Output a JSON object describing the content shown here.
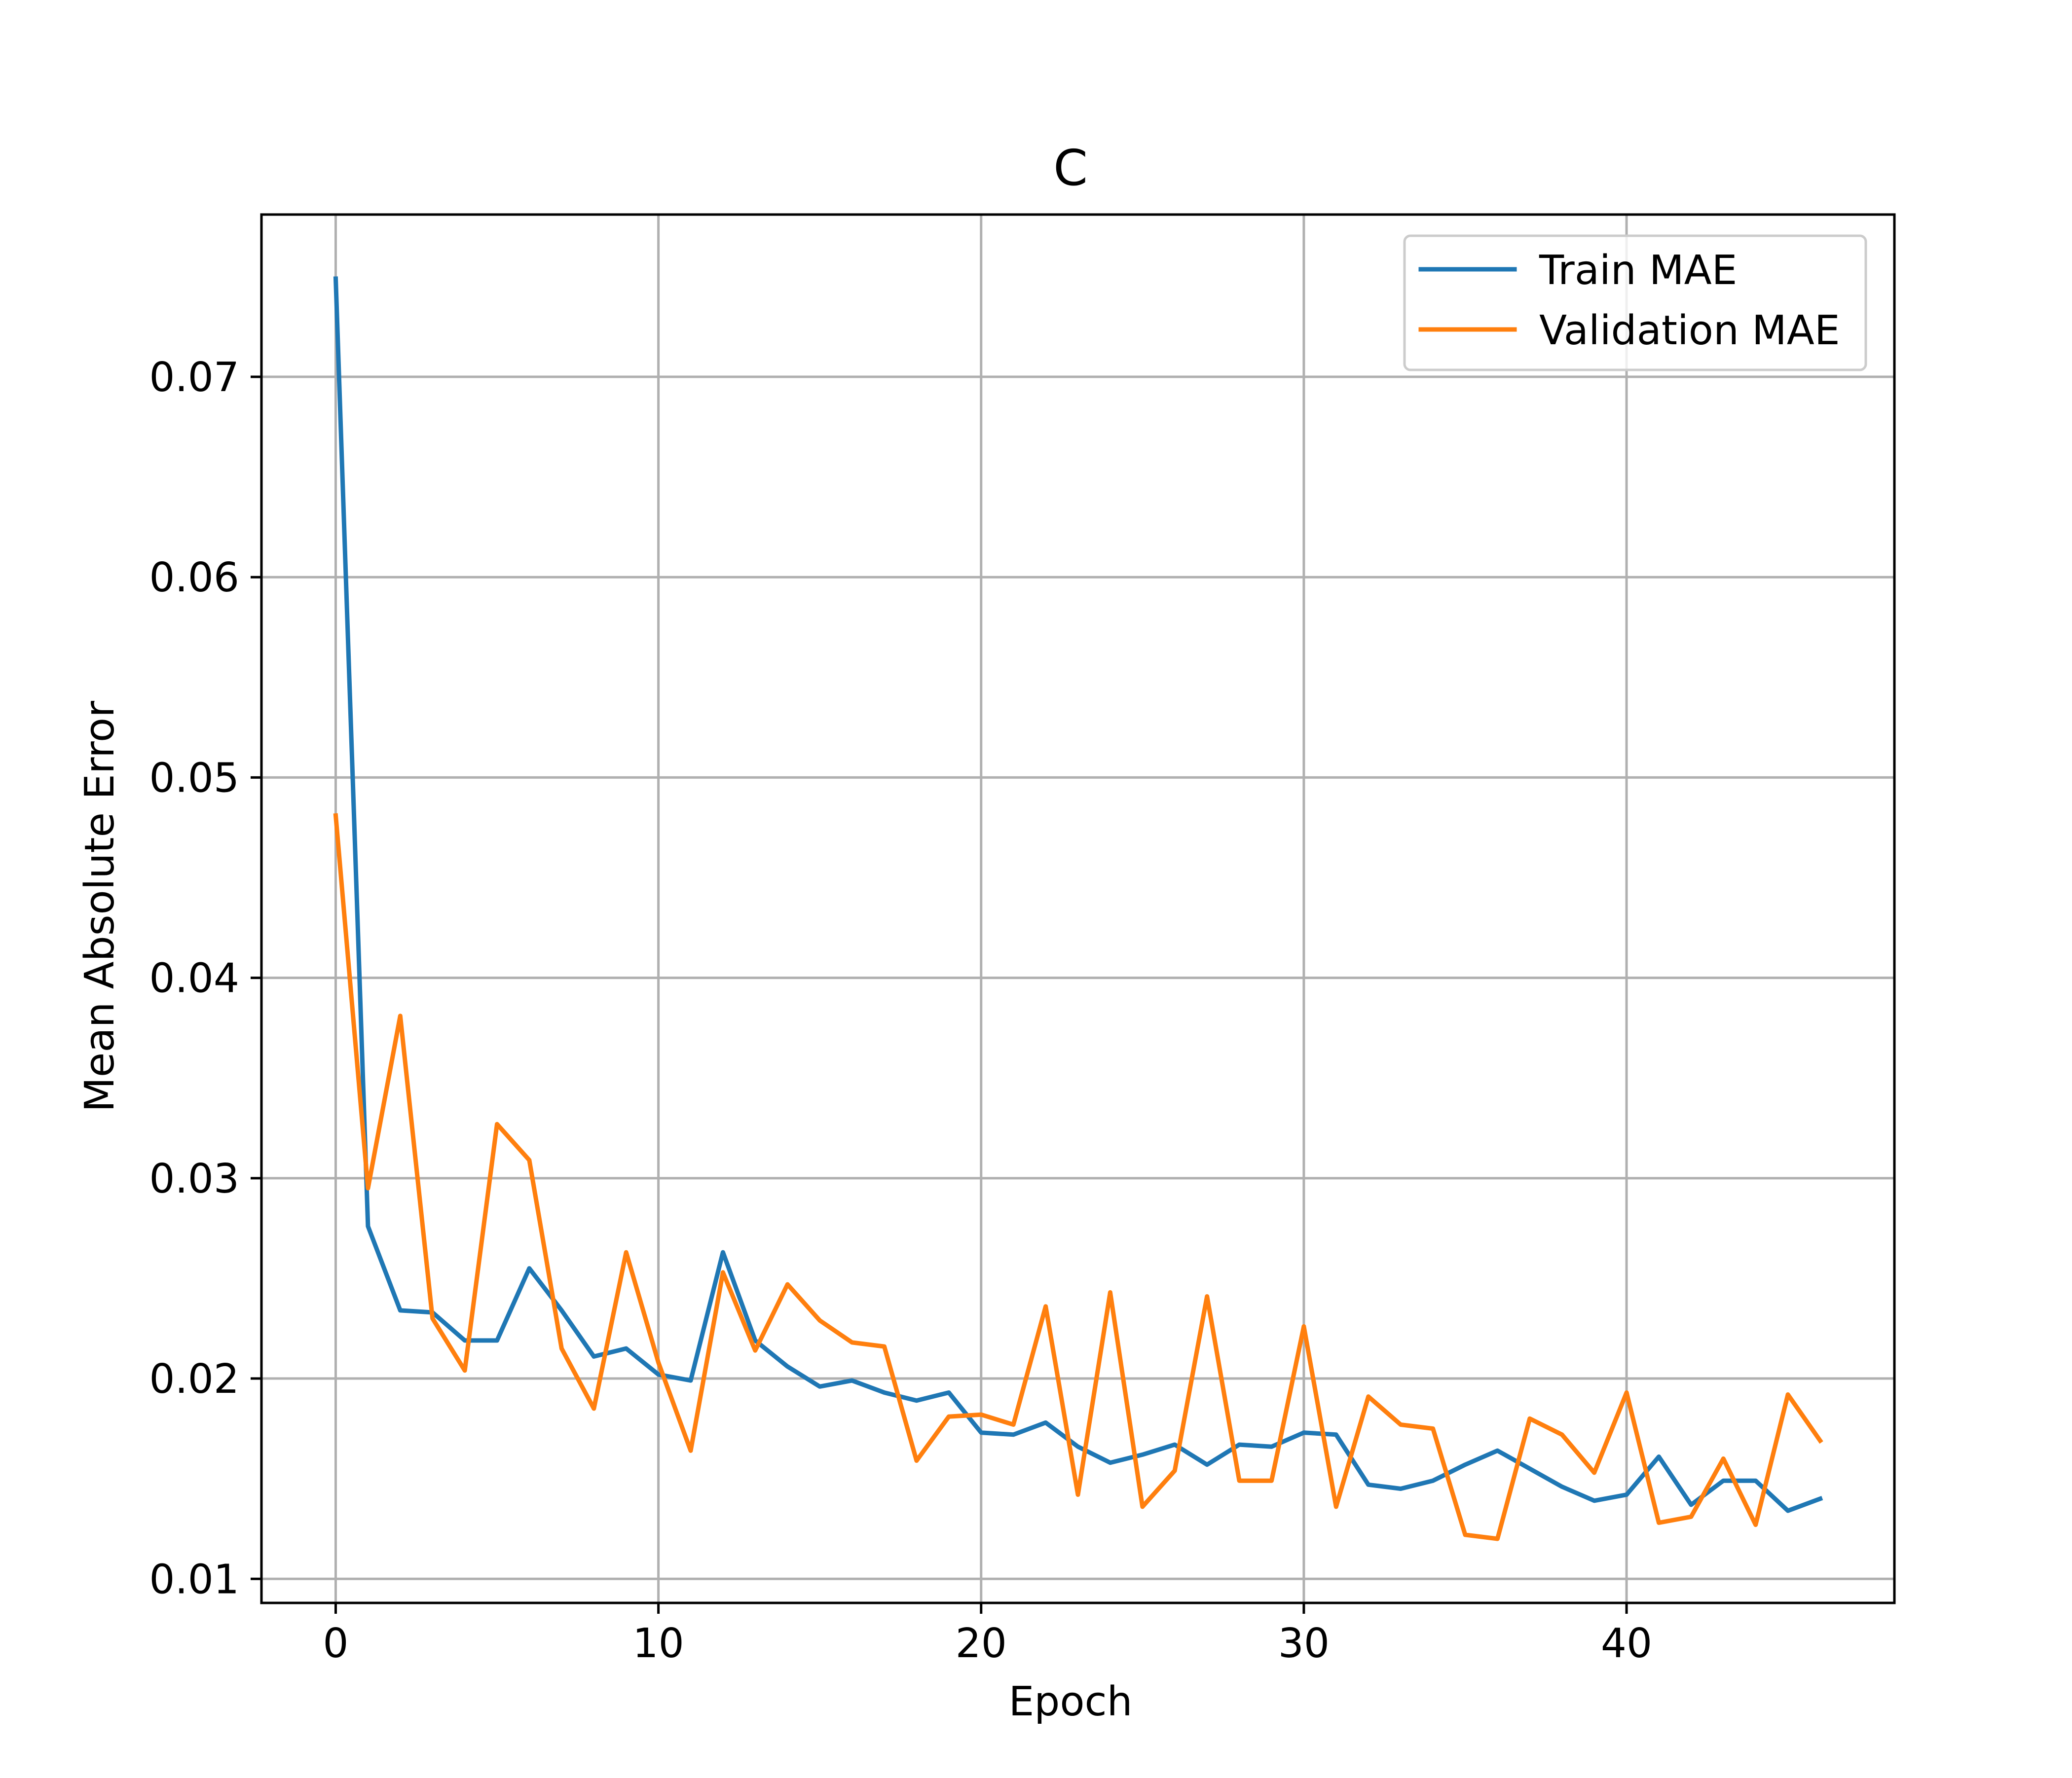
{
  "chart_data": {
    "type": "line",
    "title": "C",
    "xlabel": "Epoch",
    "ylabel": "Mean Absolute Error",
    "xlim": [
      -2.3,
      48.3
    ],
    "ylim": [
      0.0088,
      0.0781
    ],
    "xticks": [
      0,
      10,
      20,
      30,
      40
    ],
    "xtick_labels": [
      "0",
      "10",
      "20",
      "30",
      "40"
    ],
    "yticks": [
      0.01,
      0.02,
      0.03,
      0.04,
      0.05,
      0.06,
      0.07
    ],
    "ytick_labels": [
      "0.01",
      "0.02",
      "0.03",
      "0.04",
      "0.05",
      "0.06",
      "0.07"
    ],
    "grid": true,
    "legend_position": "top-right",
    "x": [
      0,
      1,
      2,
      3,
      4,
      5,
      6,
      7,
      8,
      9,
      10,
      11,
      12,
      13,
      14,
      15,
      16,
      17,
      18,
      19,
      20,
      21,
      22,
      23,
      24,
      25,
      26,
      27,
      28,
      29,
      30,
      31,
      32,
      33,
      34,
      35,
      36,
      37,
      38,
      39,
      40,
      41,
      42,
      43,
      44,
      45,
      46
    ],
    "series": [
      {
        "name": "Train MAE",
        "color": "#1f77b4",
        "values": [
          0.0749,
          0.0276,
          0.0234,
          0.0233,
          0.0219,
          0.0219,
          0.0255,
          0.0234,
          0.0211,
          0.0215,
          0.0202,
          0.0199,
          0.0263,
          0.0219,
          0.0206,
          0.0196,
          0.0199,
          0.0193,
          0.0189,
          0.0193,
          0.0173,
          0.0172,
          0.0178,
          0.0166,
          0.0158,
          0.0162,
          0.0167,
          0.0157,
          0.0167,
          0.0166,
          0.0173,
          0.0172,
          0.0147,
          0.0145,
          0.0149,
          0.0157,
          0.0164,
          0.0155,
          0.0146,
          0.0139,
          0.0142,
          0.0161,
          0.0137,
          0.0149,
          0.0149,
          0.0134,
          0.014
        ]
      },
      {
        "name": "Validation MAE",
        "color": "#ff7f0e",
        "values": [
          0.0481,
          0.0295,
          0.0381,
          0.023,
          0.0204,
          0.0327,
          0.0309,
          0.0215,
          0.0185,
          0.0263,
          0.0208,
          0.0164,
          0.0253,
          0.0214,
          0.0247,
          0.0229,
          0.0218,
          0.0216,
          0.0159,
          0.0181,
          0.0182,
          0.0177,
          0.0236,
          0.0142,
          0.0243,
          0.0136,
          0.0154,
          0.0241,
          0.0149,
          0.0149,
          0.0226,
          0.0136,
          0.0191,
          0.0177,
          0.0175,
          0.0122,
          0.012,
          0.018,
          0.0172,
          0.0153,
          0.0193,
          0.0128,
          0.0131,
          0.016,
          0.0127,
          0.0192,
          0.0169
        ]
      }
    ]
  }
}
